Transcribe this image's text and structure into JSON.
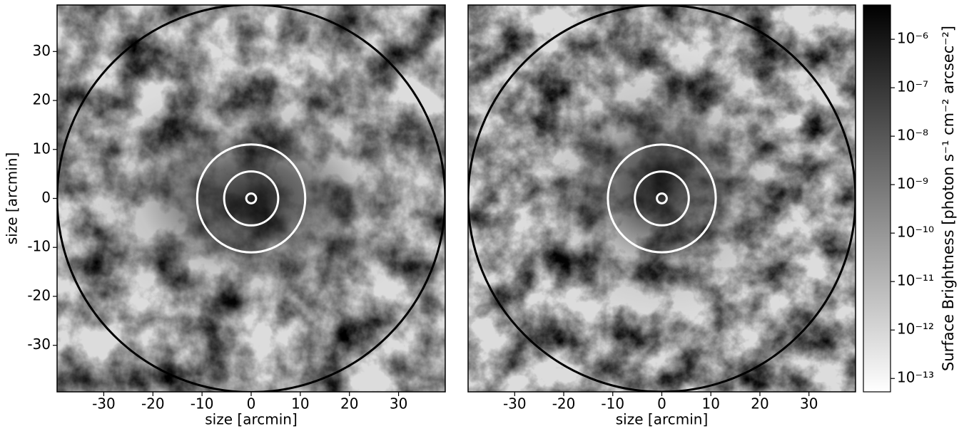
{
  "chart_data": [
    {
      "type": "image",
      "xlabel": "size [arcmin]",
      "ylabel": "size [arcmin]",
      "xlim": [
        -39.5,
        39.5
      ],
      "ylim": [
        -39.5,
        39.5
      ],
      "xticks": [
        -30,
        -20,
        -10,
        0,
        10,
        20,
        30
      ],
      "yticks": [
        -30,
        -20,
        -10,
        0,
        10,
        20,
        30
      ],
      "circles": [
        {
          "r": 39.5,
          "color": "#000000"
        },
        {
          "r": 11,
          "color": "#ffffff"
        },
        {
          "r": 5.5,
          "color": "#ffffff"
        },
        {
          "r": 1,
          "color": "#ffffff"
        }
      ]
    },
    {
      "type": "image",
      "xlabel": "size [arcmin]",
      "xlim": [
        -39.5,
        39.5
      ],
      "ylim": [
        -39.5,
        39.5
      ],
      "xticks": [
        -30,
        -20,
        -10,
        0,
        10,
        20,
        30
      ],
      "circles": [
        {
          "r": 39.5,
          "color": "#000000"
        },
        {
          "r": 11,
          "color": "#ffffff"
        },
        {
          "r": 5.5,
          "color": "#ffffff"
        },
        {
          "r": 1,
          "color": "#ffffff"
        }
      ]
    },
    {
      "type": "colorbar",
      "label": "Surface Brightness [photon s⁻¹ cm⁻² arcsec⁻²]",
      "log": true,
      "lim": [
        5.3e-14,
        5.1e-06
      ],
      "ticks": [
        {
          "value": 1e-06,
          "label": "10⁻⁶"
        },
        {
          "value": 1e-07,
          "label": "10⁻⁷"
        },
        {
          "value": 1e-08,
          "label": "10⁻⁸"
        },
        {
          "value": 1e-09,
          "label": "10⁻⁹"
        },
        {
          "value": 1e-10,
          "label": "10⁻¹⁰"
        },
        {
          "value": 1e-11,
          "label": "10⁻¹¹"
        },
        {
          "value": 1e-12,
          "label": "10⁻¹²"
        },
        {
          "value": 1e-13,
          "label": "10⁻¹³"
        }
      ]
    }
  ]
}
